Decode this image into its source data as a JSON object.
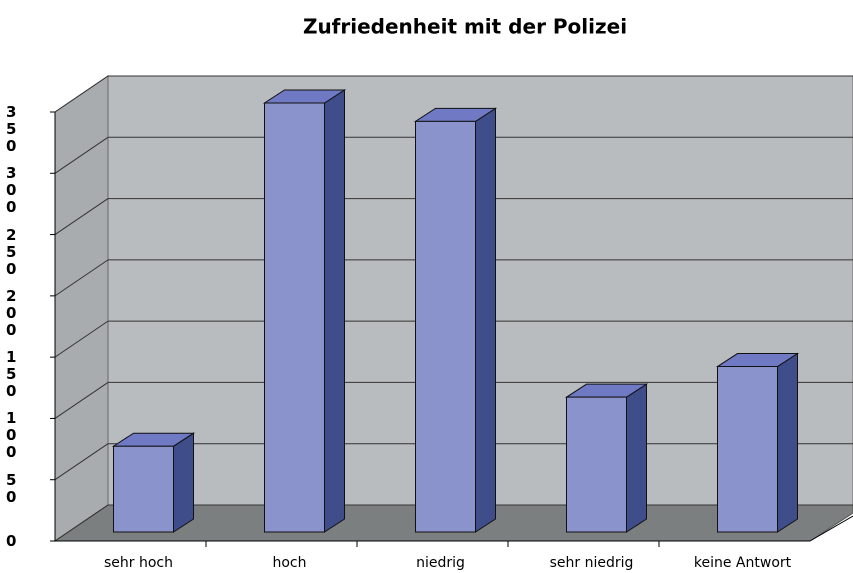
{
  "chart_data": {
    "type": "bar3d",
    "title": "Zufriedenheit mit der Polizei",
    "categories": [
      "sehr hoch",
      "hoch",
      "niedrig",
      "sehr niedrig",
      "keine Antwort"
    ],
    "values": [
      70,
      350,
      335,
      110,
      135
    ],
    "color": "#8b93cc",
    "ylim": [
      0,
      350
    ],
    "yticks": [
      0,
      50,
      100,
      150,
      200,
      250,
      300,
      350
    ],
    "grid": true
  }
}
